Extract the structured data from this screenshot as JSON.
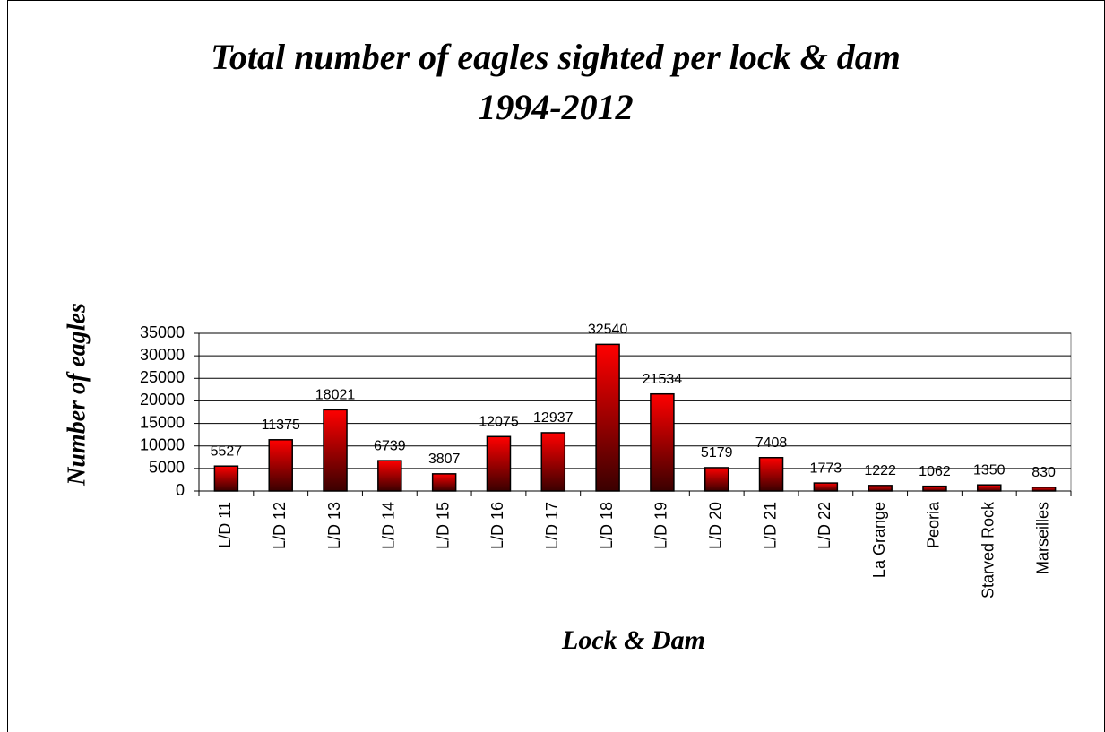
{
  "chart_data": {
    "type": "bar",
    "title": "Total number of eagles sighted per lock & dam",
    "subtitle": "1994-2012",
    "x_label": "Lock & Dam",
    "y_label": "Number of eagles",
    "categories": [
      "L/D 11",
      "L/D 12",
      "L/D 13",
      "L/D 14",
      "L/D 15",
      "L/D 16",
      "L/D 17",
      "L/D 18",
      "L/D 19",
      "L/D 20",
      "L/D 21",
      "L/D 22",
      "La Grange",
      "Peoria",
      "Starved Rock",
      "Marseilles"
    ],
    "values": [
      5527,
      11375,
      18021,
      6739,
      3807,
      12075,
      12937,
      32540,
      21534,
      5179,
      7408,
      1773,
      1222,
      1062,
      1350,
      830
    ],
    "color": "#ff0000",
    "ylim": [
      0,
      35000
    ],
    "yticks": [
      0,
      5000,
      10000,
      15000,
      20000,
      25000,
      30000,
      35000
    ],
    "grid": true
  }
}
